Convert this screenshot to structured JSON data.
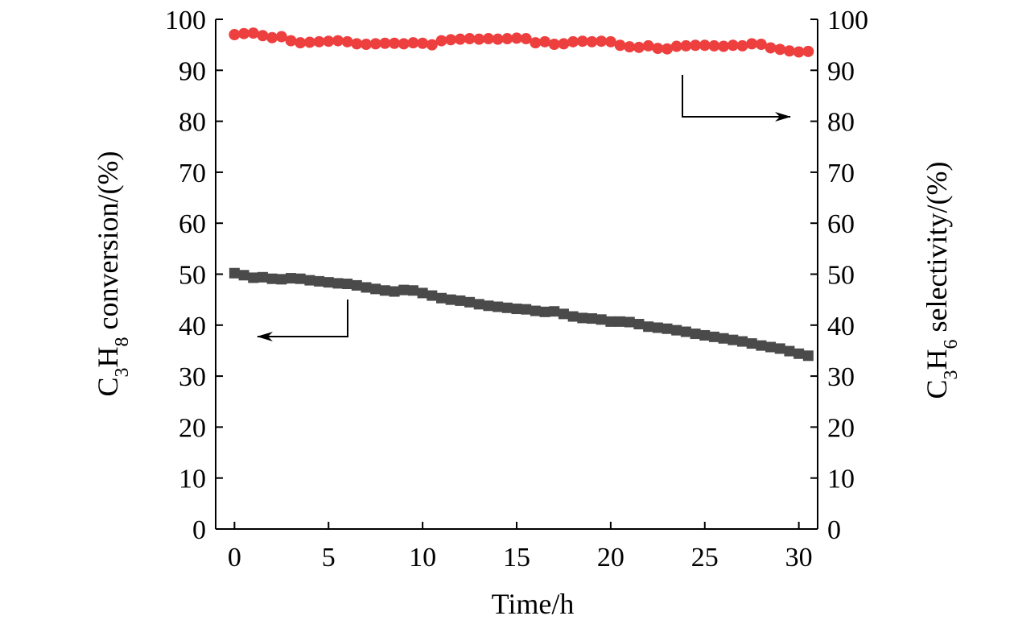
{
  "chart_data": {
    "type": "scatter",
    "title": "",
    "xlabel": "Time/h",
    "ylabel_left": {
      "prefix": "C",
      "sub1": "3",
      "mid": "H",
      "sub2": "8",
      "suffix": " conversion/(%)"
    },
    "ylabel_right": {
      "prefix": "C",
      "sub1": "3",
      "mid": "H",
      "sub2": "6",
      "suffix": " selectivity/(%)"
    },
    "xlim": [
      -1,
      31
    ],
    "ylim": [
      0,
      100
    ],
    "xticks": [
      0,
      5,
      10,
      15,
      20,
      25,
      30
    ],
    "yticks": [
      0,
      10,
      20,
      30,
      40,
      50,
      60,
      70,
      80,
      90,
      100
    ],
    "x": [
      0,
      0.5,
      1,
      1.5,
      2,
      2.5,
      3,
      3.5,
      4,
      4.5,
      5,
      5.5,
      6,
      6.5,
      7,
      7.5,
      8,
      8.5,
      9,
      9.5,
      10,
      10.5,
      11,
      11.5,
      12,
      12.5,
      13,
      13.5,
      14,
      14.5,
      15,
      15.5,
      16,
      16.5,
      17,
      17.5,
      18,
      18.5,
      19,
      19.5,
      20,
      20.5,
      21,
      21.5,
      22,
      22.5,
      23,
      23.5,
      24,
      24.5,
      25,
      25.5,
      26,
      26.5,
      27,
      27.5,
      28,
      28.5,
      29,
      29.5,
      30,
      30.5
    ],
    "series": [
      {
        "name": "C3H6 selectivity",
        "axis": "right",
        "marker": "circle",
        "color": "#ee3f3f",
        "values": [
          97.0,
          97.2,
          97.3,
          96.8,
          96.4,
          96.6,
          95.8,
          95.4,
          95.5,
          95.6,
          95.7,
          95.8,
          95.6,
          95.2,
          95.1,
          95.2,
          95.3,
          95.3,
          95.2,
          95.4,
          95.3,
          95.0,
          95.8,
          96.0,
          96.1,
          96.2,
          96.1,
          96.2,
          96.1,
          96.2,
          96.3,
          96.2,
          95.4,
          95.6,
          95.1,
          95.2,
          95.6,
          95.7,
          95.6,
          95.7,
          95.6,
          94.9,
          94.6,
          94.5,
          94.8,
          94.3,
          94.2,
          94.7,
          94.8,
          94.9,
          94.9,
          94.8,
          94.7,
          94.9,
          94.8,
          95.2,
          95.1,
          94.4,
          94.1,
          93.8,
          93.6,
          93.7
        ]
      },
      {
        "name": "C3H8 conversion",
        "axis": "left",
        "marker": "square",
        "color": "#4a4a4a",
        "values": [
          50.2,
          49.8,
          49.3,
          49.4,
          49.1,
          49.0,
          49.2,
          49.1,
          48.8,
          48.6,
          48.4,
          48.2,
          48.1,
          47.8,
          47.4,
          47.1,
          46.8,
          46.6,
          46.9,
          46.8,
          46.3,
          45.8,
          45.3,
          45.0,
          44.8,
          44.5,
          44.1,
          43.8,
          43.6,
          43.4,
          43.2,
          43.1,
          42.8,
          42.6,
          42.7,
          42.2,
          41.7,
          41.4,
          41.3,
          41.1,
          40.7,
          40.7,
          40.6,
          40.2,
          39.7,
          39.5,
          39.3,
          39.0,
          38.7,
          38.3,
          38.0,
          37.7,
          37.4,
          37.1,
          36.8,
          36.4,
          36.0,
          35.7,
          35.4,
          34.9,
          34.4,
          34.0
        ]
      }
    ],
    "annotations": [
      {
        "target": "right",
        "description": "arrow pointing to right axis"
      },
      {
        "target": "left",
        "description": "arrow pointing to left axis"
      }
    ]
  }
}
